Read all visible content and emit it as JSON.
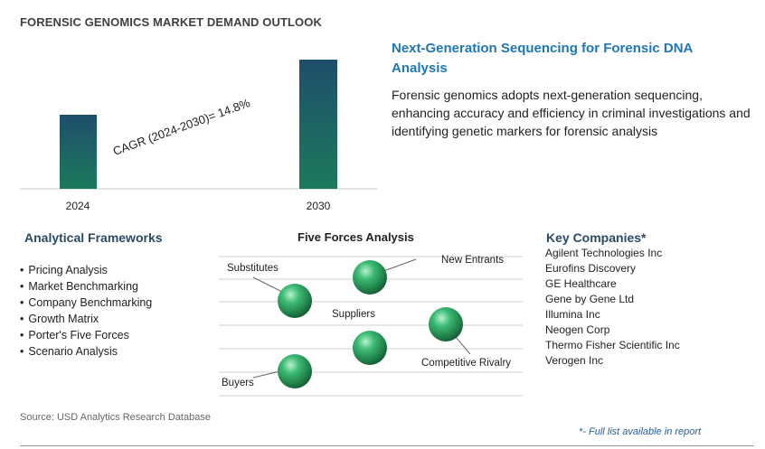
{
  "page_title": "FORENSIC GENOMICS MARKET DEMAND OUTLOOK",
  "chart_data": {
    "type": "bar",
    "categories": [
      "2024",
      "2030"
    ],
    "annotation": "CAGR (2024-2030)=   14.8%",
    "colors": {
      "bar_top": "#1f4e6b",
      "bar_bottom": "#1b7a5c"
    }
  },
  "highlight": {
    "title": "Next-Generation Sequencing for Forensic DNA Analysis",
    "description": "Forensic genomics adopts next-generation sequencing, enhancing accuracy and efficiency in criminal investigations and identifying genetic markers for forensic analysis"
  },
  "analytical_frameworks": {
    "title": "Analytical Frameworks",
    "items": [
      "Pricing Analysis",
      "Market Benchmarking",
      "Company Benchmarking",
      "Growth Matrix",
      "Porter's Five Forces",
      "Scenario Analysis"
    ]
  },
  "five_forces": {
    "title": "Five Forces Analysis",
    "labels": {
      "substitutes": "Substitutes",
      "new_entrants": "New Entrants",
      "suppliers": "Suppliers",
      "competitive_rivalry": "Competitive Rivalry",
      "buyers": "Buyers"
    },
    "sphere_color": "#2e9e5e"
  },
  "key_companies": {
    "title": "Key Companies*",
    "items": [
      "Agilent Technologies Inc",
      "Eurofins Discovery",
      "GE Healthcare",
      "Gene by Gene Ltd",
      "Illumina Inc",
      "Neogen Corp",
      "Thermo Fisher Scientific Inc",
      "Verogen Inc"
    ]
  },
  "source": "Source: USD Analytics Research Database",
  "footnote": "*- Full list available in report"
}
